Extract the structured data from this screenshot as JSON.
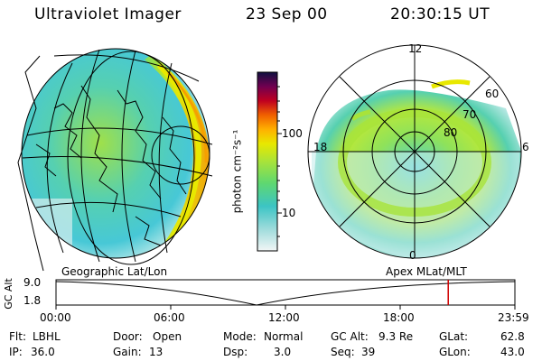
{
  "header": {
    "title": "Ultraviolet Imager",
    "date": "23 Sep 00",
    "time": "20:30:15 UT"
  },
  "colorbar": {
    "unit_label": "photon cm⁻²s⁻¹",
    "ticks": [
      "100",
      "10"
    ]
  },
  "polar_plot": {
    "mlt_labels": [
      "12",
      "18",
      "6",
      "0"
    ],
    "lat_labels": [
      "60",
      "70",
      "80"
    ]
  },
  "map_labels": {
    "left": "Geographic Lat/Lon",
    "right": "Apex MLat/MLT"
  },
  "altitude_plot": {
    "axis_label": "GC Alt",
    "y_ticks": [
      "9.0",
      "1.8"
    ],
    "x_ticks": [
      "00:00",
      "06:00",
      "12:00",
      "18:00",
      "23:59"
    ],
    "current_time_hours": 20.5
  },
  "status": {
    "flt_label": "Flt:",
    "flt_value": "LBHL",
    "ip_label": "IP:",
    "ip_value": "36.0",
    "door_label": "Door:",
    "door_value": "Open",
    "gain_label": "Gain:",
    "gain_value": "13",
    "mode_label": "Mode:",
    "mode_value": "Normal",
    "dsp_label": "Dsp:",
    "dsp_value": "3.0",
    "gcalt_label": "GC Alt:",
    "gcalt_value": "9.3 Re",
    "seq_label": "Seq:",
    "seq_value": "39",
    "glat_label": "GLat:",
    "glat_value": "62.8",
    "glon_label": "GLon:",
    "glon_value": "43.0"
  },
  "colors": {
    "aurora_low": "#3fc9c9",
    "aurora_mid": "#7fe05a",
    "aurora_high": "#e8e800",
    "marker": "#d00000"
  }
}
